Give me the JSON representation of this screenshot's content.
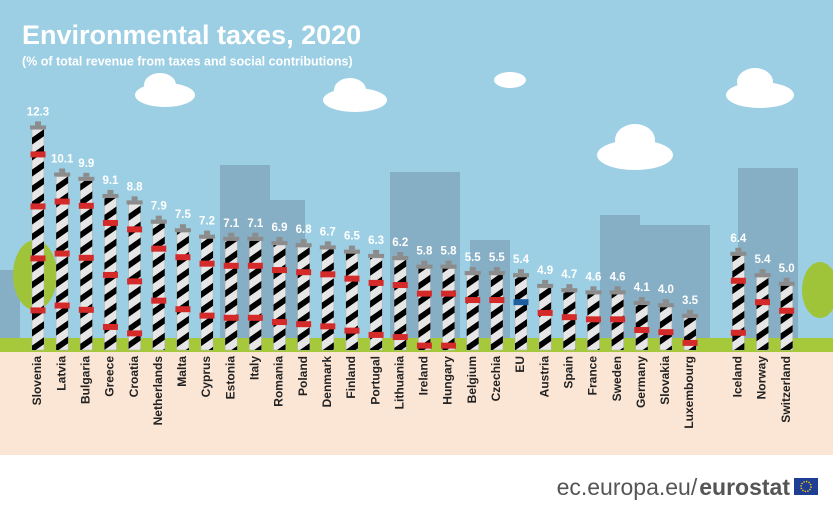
{
  "chart_data": {
    "type": "bar",
    "title": "Environmental taxes, 2020",
    "subtitle": "(% of total revenue from taxes and social contributions)",
    "categories": [
      "Slovenia",
      "Latvia",
      "Bulgaria",
      "Greece",
      "Croatia",
      "Netherlands",
      "Malta",
      "Cyprus",
      "Estonia",
      "Italy",
      "Romania",
      "Poland",
      "Denmark",
      "Finland",
      "Portugal",
      "Lithuania",
      "Ireland",
      "Hungary",
      "Belgium",
      "Czechia",
      "EU",
      "Austria",
      "Spain",
      "France",
      "Sweden",
      "Germany",
      "Slovakia",
      "Luxembourg",
      "Iceland",
      "Norway",
      "Switzerland"
    ],
    "values": [
      12.3,
      10.1,
      9.9,
      9.1,
      8.8,
      7.9,
      7.5,
      7.2,
      7.1,
      7.1,
      6.9,
      6.8,
      6.7,
      6.5,
      6.3,
      6.2,
      5.8,
      5.8,
      5.5,
      5.5,
      5.4,
      4.9,
      4.7,
      4.6,
      4.6,
      4.1,
      4.0,
      3.5,
      6.4,
      5.4,
      5.0
    ],
    "value_labels": [
      "12.3",
      "10.1",
      "9.9",
      "9.1",
      "8.8",
      "7.9",
      "7.5",
      "7.2",
      "7.1",
      "7.1",
      "6.9",
      "6.8",
      "6.7",
      "6.5",
      "6.3",
      "6.2",
      "5.8",
      "5.8",
      "5.5",
      "5.5",
      "5.4",
      "4.9",
      "4.7",
      "4.6",
      "4.6",
      "4.1",
      "4.0",
      "3.5",
      "6.4",
      "5.4",
      "5.0"
    ],
    "colors": [
      "#d42a2a",
      "#d42a2a",
      "#d42a2a",
      "#d42a2a",
      "#d42a2a",
      "#d42a2a",
      "#d42a2a",
      "#d42a2a",
      "#d42a2a",
      "#d42a2a",
      "#d42a2a",
      "#d42a2a",
      "#d42a2a",
      "#d42a2a",
      "#d42a2a",
      "#d42a2a",
      "#d42a2a",
      "#d42a2a",
      "#d42a2a",
      "#d42a2a",
      "#1d5f9e",
      "#d42a2a",
      "#d42a2a",
      "#d42a2a",
      "#d42a2a",
      "#d42a2a",
      "#d42a2a",
      "#d42a2a",
      "#d42a2a",
      "#d42a2a",
      "#d42a2a"
    ],
    "ylim": [
      2,
      13.3
    ]
  },
  "footer": {
    "site": "ec.europa.eu/",
    "brand": "eurostat"
  }
}
